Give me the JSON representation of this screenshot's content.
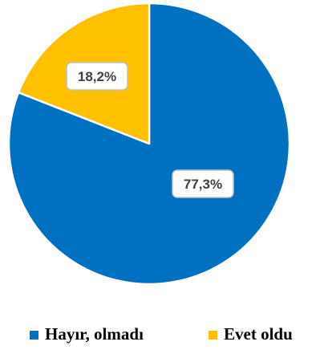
{
  "chart_data": {
    "type": "pie",
    "slices": [
      {
        "name": "Hayır, olmadı",
        "value": 77.3,
        "label": "77,3%",
        "color": "#0070C0"
      },
      {
        "name": "Evet oldu",
        "value": 18.2,
        "label": "18,2%",
        "color": "#FFC000"
      }
    ],
    "legend": {
      "position": "bottom",
      "entries": [
        "Hayır, olmadı",
        "Evet oldu"
      ]
    }
  }
}
